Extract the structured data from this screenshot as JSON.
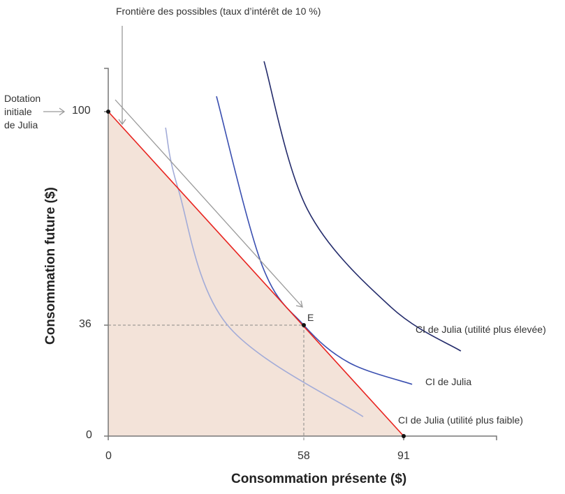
{
  "chart_data": {
    "type": "line",
    "xlabel": "Consommation présente ($)",
    "ylabel": "Consommation future ($)",
    "x_ticks": [
      0,
      58,
      91
    ],
    "y_ticks": [
      0,
      36,
      100
    ],
    "grid": false,
    "shaded_region_color": "#f3e3d9",
    "frontier": {
      "label": "Frontière des possibles (taux d’intérêt de 10 %)",
      "color": "#e8231f",
      "points": [
        [
          0,
          100
        ],
        [
          91,
          0
        ]
      ]
    },
    "endowment": {
      "label": "Dotation initiale de Julia",
      "lines": [
        "Dotation",
        "initiale",
        "de Julia"
      ],
      "point": [
        0,
        100
      ]
    },
    "equilibrium": {
      "label": "E",
      "point": [
        58,
        36
      ]
    },
    "indifference_curves": [
      {
        "name": "CI de Julia (utilité plus faible)",
        "color": "#a3acd8",
        "points": [
          [
            17,
            95.2
          ],
          [
            20.7,
            77
          ],
          [
            35.2,
            36.2
          ],
          [
            77.6,
            6.3
          ]
        ]
      },
      {
        "name": "CI de Julia",
        "color": "#3a4fb0",
        "points": [
          [
            32.1,
            104.6
          ],
          [
            45.6,
            54
          ],
          [
            58,
            36
          ],
          [
            73,
            23.8
          ],
          [
            93.8,
            16.8
          ]
        ]
      },
      {
        "name": "CI de Julia (utilité plus élevée)",
        "color": "#232b6b",
        "points": [
          [
            46.2,
            115.1
          ],
          [
            59.2,
            70.7
          ],
          [
            86.8,
            41.4
          ],
          [
            109.9,
            27.6
          ]
        ]
      }
    ]
  }
}
